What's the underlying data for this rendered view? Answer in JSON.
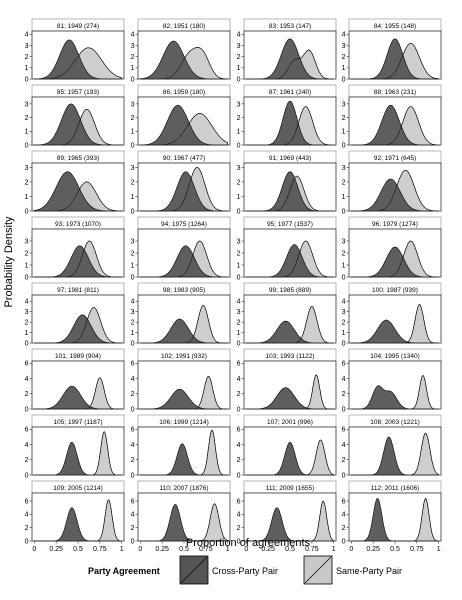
{
  "chart_data": {
    "type": "area",
    "xlabel": "Proportion of agreements",
    "ylabel": "Probability Density",
    "xlim": [
      0,
      1
    ],
    "x_ticks": [
      "0",
      "0.25",
      "0.5",
      "0.75",
      "1"
    ],
    "legend": {
      "title": "Party Agreement",
      "placement": "bottom",
      "entries": [
        {
          "name": "Cross-Party Pair",
          "color": "#555555"
        },
        {
          "name": "Same-Party Pair",
          "color": "#c8c8c8"
        }
      ]
    },
    "series_style": {
      "cross": {
        "fill": "#555555",
        "opacity": 0.95
      },
      "same": {
        "fill": "#bdbdbd",
        "opacity": 0.75
      }
    },
    "rows": [
      {
        "ylim": [
          0,
          4.3
        ],
        "y_ticks": [
          0,
          1,
          2,
          3,
          4
        ]
      },
      {
        "ylim": [
          0,
          3.5
        ],
        "y_ticks": [
          0,
          1,
          2,
          3
        ]
      },
      {
        "ylim": [
          0,
          3.3
        ],
        "y_ticks": [
          0,
          1,
          2,
          3
        ]
      },
      {
        "ylim": [
          0,
          4.0
        ],
        "y_ticks": [
          0,
          1,
          2,
          3
        ]
      },
      {
        "ylim": [
          0,
          4.6
        ],
        "y_ticks": [
          0,
          1,
          2,
          3,
          4
        ]
      },
      {
        "ylim": [
          0,
          6.3
        ],
        "y_ticks": [
          0,
          2,
          4,
          6
        ]
      },
      {
        "ylim": [
          0,
          6.3
        ],
        "y_ticks": [
          0,
          2,
          4,
          6
        ]
      },
      {
        "ylim": [
          0,
          7.2
        ],
        "y_ticks": [
          0,
          2,
          4,
          6
        ]
      }
    ],
    "panels": [
      {
        "label": "81; 1949 (274)",
        "cross": [
          [
            0.4,
            0.11,
            3.5
          ]
        ],
        "same": [
          [
            0.62,
            0.15,
            2.8
          ]
        ]
      },
      {
        "label": "82; 1951 (180)",
        "cross": [
          [
            0.38,
            0.12,
            3.4
          ]
        ],
        "same": [
          [
            0.57,
            0.1,
            2.2
          ],
          [
            0.72,
            0.08,
            1.8
          ]
        ]
      },
      {
        "label": "83; 1953 (147)",
        "cross": [
          [
            0.5,
            0.1,
            3.6
          ]
        ],
        "same": [
          [
            0.55,
            0.07,
            1.6
          ],
          [
            0.72,
            0.07,
            2.5
          ]
        ]
      },
      {
        "label": "84; 1955 (148)",
        "cross": [
          [
            0.5,
            0.09,
            3.6
          ]
        ],
        "same": [
          [
            0.68,
            0.1,
            3.2
          ]
        ]
      },
      {
        "label": "85; 1957 (193)",
        "cross": [
          [
            0.42,
            0.11,
            3.0
          ]
        ],
        "same": [
          [
            0.6,
            0.09,
            2.6
          ]
        ]
      },
      {
        "label": "86; 1959 (180)",
        "cross": [
          [
            0.43,
            0.12,
            2.9
          ]
        ],
        "same": [
          [
            0.68,
            0.14,
            2.3
          ]
        ]
      },
      {
        "label": "87; 1961 (240)",
        "cross": [
          [
            0.5,
            0.08,
            3.2
          ]
        ],
        "same": [
          [
            0.68,
            0.08,
            2.8
          ]
        ]
      },
      {
        "label": "88; 1963 (231)",
        "cross": [
          [
            0.45,
            0.1,
            2.9
          ]
        ],
        "same": [
          [
            0.68,
            0.09,
            2.8
          ]
        ]
      },
      {
        "label": "89; 1965 (393)",
        "cross": [
          [
            0.38,
            0.13,
            2.7
          ]
        ],
        "same": [
          [
            0.6,
            0.11,
            2.0
          ]
        ]
      },
      {
        "label": "90; 1967 (477)",
        "cross": [
          [
            0.52,
            0.1,
            2.7
          ]
        ],
        "same": [
          [
            0.65,
            0.09,
            3.0
          ]
        ]
      },
      {
        "label": "91; 1969 (443)",
        "cross": [
          [
            0.5,
            0.09,
            2.7
          ]
        ],
        "same": [
          [
            0.58,
            0.08,
            2.4
          ]
        ]
      },
      {
        "label": "92; 1971 (645)",
        "cross": [
          [
            0.45,
            0.11,
            2.2
          ]
        ],
        "same": [
          [
            0.62,
            0.1,
            2.8
          ]
        ]
      },
      {
        "label": "93; 1973 (1070)",
        "cross": [
          [
            0.52,
            0.1,
            2.6
          ]
        ],
        "same": [
          [
            0.63,
            0.08,
            3.0
          ]
        ]
      },
      {
        "label": "94; 1975 (1264)",
        "cross": [
          [
            0.52,
            0.1,
            2.6
          ]
        ],
        "same": [
          [
            0.68,
            0.08,
            3.0
          ]
        ]
      },
      {
        "label": "95; 1977 (1537)",
        "cross": [
          [
            0.55,
            0.09,
            2.7
          ]
        ],
        "same": [
          [
            0.68,
            0.08,
            3.0
          ]
        ]
      },
      {
        "label": "96; 1979 (1274)",
        "cross": [
          [
            0.5,
            0.1,
            2.5
          ]
        ],
        "same": [
          [
            0.68,
            0.08,
            3.0
          ]
        ]
      },
      {
        "label": "97; 1981 (811)",
        "cross": [
          [
            0.55,
            0.1,
            2.7
          ]
        ],
        "same": [
          [
            0.68,
            0.08,
            3.4
          ]
        ]
      },
      {
        "label": "98; 1983 (905)",
        "cross": [
          [
            0.45,
            0.1,
            2.3
          ]
        ],
        "same": [
          [
            0.72,
            0.06,
            3.6
          ]
        ]
      },
      {
        "label": "99; 1985 (889)",
        "cross": [
          [
            0.45,
            0.1,
            2.1
          ]
        ],
        "same": [
          [
            0.75,
            0.06,
            3.5
          ]
        ]
      },
      {
        "label": "100; 1987 (939)",
        "cross": [
          [
            0.4,
            0.1,
            2.2
          ]
        ],
        "same": [
          [
            0.78,
            0.05,
            3.7
          ]
        ]
      },
      {
        "label": "101; 1989 (904)",
        "cross": [
          [
            0.43,
            0.1,
            3.0
          ]
        ],
        "same": [
          [
            0.75,
            0.05,
            4.1
          ]
        ]
      },
      {
        "label": "102; 1991 (932)",
        "cross": [
          [
            0.45,
            0.1,
            2.6
          ]
        ],
        "same": [
          [
            0.78,
            0.05,
            4.3
          ]
        ]
      },
      {
        "label": "103; 1993 (1122)",
        "cross": [
          [
            0.45,
            0.1,
            2.8
          ]
        ],
        "same": [
          [
            0.8,
            0.04,
            4.5
          ]
        ]
      },
      {
        "label": "104; 1995 (1340)",
        "cross": [
          [
            0.3,
            0.06,
            2.8
          ],
          [
            0.45,
            0.07,
            2.2
          ]
        ],
        "same": [
          [
            0.82,
            0.04,
            4.4
          ]
        ]
      },
      {
        "label": "105; 1997 (1187)",
        "cross": [
          [
            0.43,
            0.06,
            4.3
          ]
        ],
        "same": [
          [
            0.8,
            0.04,
            5.7
          ]
        ]
      },
      {
        "label": "106; 1999 (1214)",
        "cross": [
          [
            0.48,
            0.06,
            4.1
          ]
        ],
        "same": [
          [
            0.82,
            0.04,
            5.9
          ]
        ]
      },
      {
        "label": "107; 2001 (996)",
        "cross": [
          [
            0.5,
            0.06,
            4.3
          ]
        ],
        "same": [
          [
            0.85,
            0.05,
            4.6
          ]
        ]
      },
      {
        "label": "108; 2003 (1221)",
        "cross": [
          [
            0.43,
            0.06,
            5.0
          ]
        ],
        "same": [
          [
            0.85,
            0.05,
            5.5
          ]
        ]
      },
      {
        "label": "109; 2005 (1214)",
        "cross": [
          [
            0.43,
            0.06,
            5.0
          ]
        ],
        "same": [
          [
            0.85,
            0.04,
            6.2
          ]
        ]
      },
      {
        "label": "110; 2007 (1876)",
        "cross": [
          [
            0.4,
            0.06,
            5.5
          ]
        ],
        "same": [
          [
            0.85,
            0.05,
            5.6
          ]
        ]
      },
      {
        "label": "111; 2009 (1655)",
        "cross": [
          [
            0.35,
            0.06,
            5.0
          ]
        ],
        "same": [
          [
            0.88,
            0.04,
            6.0
          ]
        ]
      },
      {
        "label": "112; 2011 (1606)",
        "cross": [
          [
            0.3,
            0.05,
            6.4
          ]
        ],
        "same": [
          [
            0.85,
            0.04,
            6.4
          ]
        ]
      }
    ]
  }
}
